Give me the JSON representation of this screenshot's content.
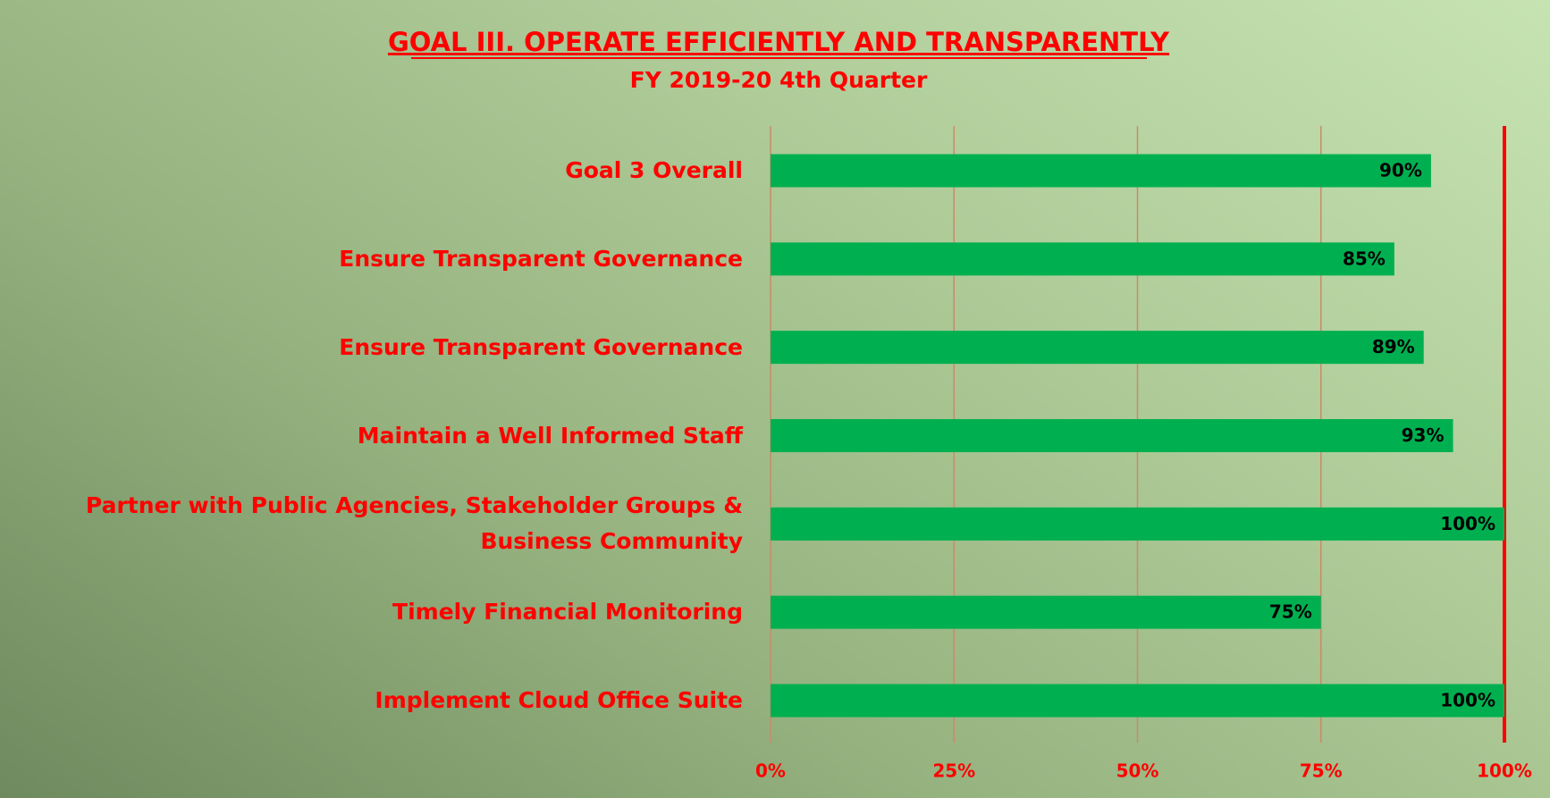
{
  "chart_data": {
    "type": "barh",
    "title": "GOAL III. OPERATE EFFICIENTLY AND TRANSPARENTLY",
    "subtitle": "FY 2019-20 4th Quarter",
    "categories": [
      "Goal 3 Overall",
      "Ensure Transparent Governance",
      "Ensure Transparent Governance",
      "Maintain a Well Informed Staff",
      "Partner with Public Agencies, Stakeholder Groups & Business Community",
      "Timely Financial Monitoring",
      "Implement Cloud Office Suite"
    ],
    "values": [
      90,
      85,
      89,
      93,
      100,
      75,
      100
    ],
    "value_labels": [
      "90%",
      "85%",
      "89%",
      "93%",
      "100%",
      "75%",
      "100%"
    ],
    "color": "#00b050",
    "xlim": [
      0,
      100
    ],
    "xticks": [
      {
        "value": 0,
        "label": "0%"
      },
      {
        "value": 25,
        "label": "25%"
      },
      {
        "value": 50,
        "label": "50%"
      },
      {
        "value": 75,
        "label": "75%"
      },
      {
        "value": 100,
        "label": "100%"
      }
    ],
    "grid": true
  }
}
